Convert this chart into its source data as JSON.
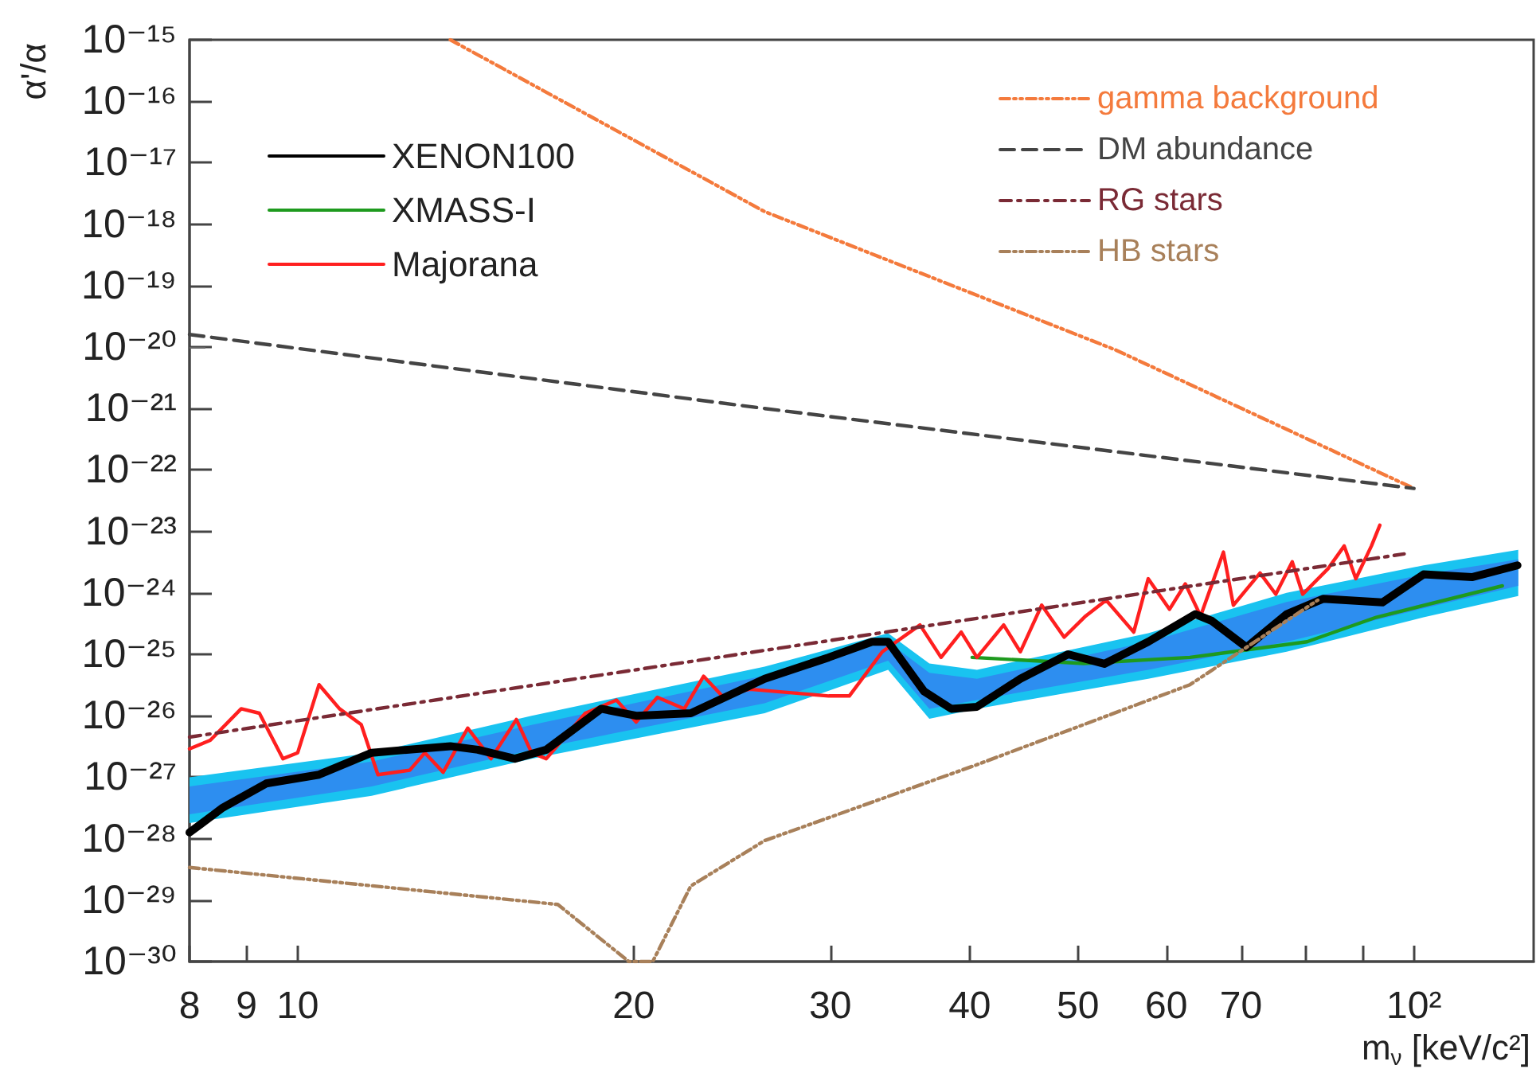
{
  "chart_data": {
    "type": "line",
    "xlabel": "m$_{ν}$ [keV/c²]",
    "ylabel": "α'/α",
    "log": "xy",
    "legend": "top",
    "xlim": [
      8,
      128
    ],
    "ylim": [
      1e-30,
      1e-15
    ],
    "xticks": [
      8,
      9,
      10,
      20,
      30,
      40,
      50,
      60,
      70,
      {
        "value": 80,
        "label": null
      },
      {
        "value": 90,
        "label": null
      },
      {
        "value": 100,
        "label": "10²"
      }
    ],
    "yticks": [
      {
        "value": 1e-15,
        "label": "10⁻¹⁵"
      },
      {
        "value": 1e-16,
        "label": "10⁻¹⁶"
      },
      {
        "value": 1e-17,
        "label": "10⁻¹⁷"
      },
      {
        "value": 1e-18,
        "label": "10⁻¹⁸"
      },
      {
        "value": 1e-19,
        "label": "10⁻¹⁹"
      },
      {
        "value": 1e-20,
        "label": "10⁻²⁰"
      },
      {
        "value": 1e-21,
        "label": "10⁻²¹"
      },
      {
        "value": 1e-22,
        "label": "10⁻²²"
      },
      {
        "value": 1e-23,
        "label": "10⁻²³"
      },
      {
        "value": 1e-24,
        "label": "10⁻²⁴"
      },
      {
        "value": 1e-25,
        "label": "10⁻²⁵"
      },
      {
        "value": 1e-26,
        "label": "10⁻²⁶"
      },
      {
        "value": 1e-27,
        "label": "10⁻²⁷"
      },
      {
        "value": 1e-28,
        "label": "10⁻²⁸"
      },
      {
        "value": 1e-29,
        "label": "10⁻²⁹"
      },
      {
        "value": 1e-30,
        "label": "10⁻³⁰"
      }
    ],
    "series": [
      {
        "type": "area",
        "color": "#19c3f0",
        "x": [
          8,
          11.65,
          16.2,
          26.2,
          33.8,
          36.8,
          40.6,
          57.8,
          76.9,
          102,
          124
        ],
        "values": [
          null,
          null,
          null,
          null,
          null,
          null,
          null,
          null,
          null,
          null,
          null
        ],
        "lower": [
          1.8e-28,
          5e-28,
          2e-27,
          1.1e-26,
          5.6e-26,
          8.9e-27,
          1.3e-26,
          4e-26,
          1.1e-25,
          4e-25,
          8.9e-25
        ],
        "upper": [
          1e-27,
          2.5e-27,
          1e-26,
          6.3e-26,
          2.2e-25,
          7.1e-26,
          5.6e-26,
          2.2e-25,
          1e-24,
          2.8e-24,
          5e-24
        ]
      },
      {
        "type": "area",
        "color": "#2d8ef0",
        "x": [
          8,
          11.65,
          16.2,
          26.2,
          33.8,
          36.8,
          40.6,
          57.8,
          76.9,
          102,
          124
        ],
        "values": [
          null,
          null,
          null,
          null,
          null,
          null,
          null,
          null,
          null,
          null,
          null
        ],
        "lower": [
          2.5e-28,
          7.1e-28,
          2.8e-27,
          1.6e-26,
          7.9e-26,
          1.3e-26,
          1.8e-26,
          5.6e-26,
          1.6e-25,
          5.6e-25,
          1.3e-24
        ],
        "upper": [
          7.1e-28,
          1.8e-27,
          7.1e-27,
          4.5e-26,
          1.6e-25,
          5e-26,
          4e-26,
          1.6e-25,
          7.1e-25,
          2e-24,
          3.5e-24
        ]
      },
      {
        "name": "gamma background",
        "color": "#f47a3c",
        "line_style": "dashdotdot",
        "x": [
          13.7,
          26.2,
          54.1,
          100
        ],
        "values": [
          1e-15,
          1.6e-18,
          8.9e-21,
          5e-23
        ]
      },
      {
        "name": "DM abundance",
        "color": "#444444",
        "line_style": "dashed",
        "x": [
          8,
          26.2,
          100
        ],
        "values": [
          1.6e-20,
          1e-21,
          5e-23
        ]
      },
      {
        "name": "RG stars",
        "color": "#7a2a35",
        "line_style": "dashdot",
        "x": [
          8,
          98
        ],
        "values": [
          4.5e-27,
          4.3e-24
        ]
      },
      {
        "name": "HB stars",
        "color": "#a8805a",
        "line_style": "dashdotdot",
        "x": [
          8,
          17.1,
          19.8,
          20.8,
          22.5,
          26.2,
          40.6,
          63,
          82
        ],
        "values": [
          3.4e-29,
          8.5e-30,
          1e-30,
          1e-30,
          1.7e-29,
          9.3e-29,
          1.6e-27,
          3.2e-26,
          7.6e-25
        ]
      },
      {
        "name": "XENON100",
        "color": "#000000",
        "x": [
          8,
          8.57,
          9.37,
          10.45,
          11.65,
          13.7,
          14.5,
          15.65,
          16.7,
          18.7,
          20.1,
          22.5,
          26.2,
          29.9,
          32.7,
          33.8,
          36.4,
          38.5,
          40.6,
          44.4,
          49,
          52.8,
          57.8,
          63.7,
          65.9,
          70.8,
          76.9,
          82.9,
          93.7,
          102,
          112.7,
          123.8
        ],
        "values": [
          1.26e-28,
          3.2e-28,
          7.9e-28,
          1.1e-27,
          2.5e-27,
          3.2e-27,
          2.8e-27,
          2e-27,
          2.8e-27,
          1.3e-26,
          1e-26,
          1.1e-26,
          4e-26,
          8.9e-26,
          1.6e-25,
          1.6e-25,
          2.5e-26,
          1.3e-26,
          1.4e-26,
          4e-26,
          1e-25,
          7e-26,
          1.6e-25,
          4.5e-25,
          3.5e-25,
          1.3e-25,
          4.5e-25,
          8e-25,
          7e-25,
          2e-24,
          1.8e-24,
          2.8e-24
        ]
      },
      {
        "name": "XMASS-I",
        "color": "#1e9a1e",
        "x": [
          40.2,
          50.6,
          63,
          80.2,
          92.5,
          120
        ],
        "values": [
          8.9e-26,
          7.1e-26,
          8.9e-26,
          1.6e-25,
          4e-25,
          1.3e-24
        ]
      },
      {
        "name": "Majorana",
        "color": "#ff1f1f",
        "x": [
          8,
          8.35,
          8.9,
          9.24,
          9.7,
          10,
          10.45,
          10.9,
          11.4,
          11.8,
          12.6,
          13,
          13.5,
          14.2,
          14.9,
          15.7,
          16.2,
          16.7,
          18.1,
          19.3,
          20.1,
          21,
          22.2,
          23.1,
          24,
          25.4,
          29.9,
          31.2,
          33.4,
          36.1,
          37.7,
          39.3,
          40.6,
          42.9,
          44.4,
          46.4,
          48.6,
          50.8,
          53,
          56.1,
          57.8,
          60.4,
          62.4,
          64.4,
          67.5,
          68.9,
          72.8,
          75.2,
          77.8,
          79.5,
          83.8,
          86.6,
          88.7,
          91.6,
          93.2
        ],
        "values": [
          2.9e-27,
          4e-27,
          1.3e-26,
          1.1e-26,
          2e-27,
          2.5e-27,
          3.2e-26,
          1.3e-26,
          7.2e-27,
          1.1e-27,
          1.3e-27,
          2.5e-27,
          1.2e-27,
          6.3e-27,
          2e-27,
          8.7e-27,
          2.5e-27,
          2e-27,
          1.1e-26,
          1.8e-26,
          7.9e-27,
          2e-26,
          1.3e-26,
          4.4e-26,
          2.1e-26,
          2.7e-26,
          2.1e-26,
          2.1e-26,
          1.1e-25,
          3e-25,
          8.9e-26,
          2.3e-25,
          8.9e-26,
          3e-25,
          1.1e-25,
          6.3e-25,
          1.9e-25,
          4.2e-25,
          7.6e-25,
          2.3e-25,
          1.7e-24,
          5.4e-25,
          1.4e-24,
          4.2e-25,
          4.6e-24,
          6.3e-25,
          2.1e-24,
          9.5e-25,
          3.2e-24,
          9.5e-25,
          2.5e-24,
          5.8e-24,
          1.7e-24,
          5.8e-24,
          1.26e-23
        ]
      }
    ]
  }
}
